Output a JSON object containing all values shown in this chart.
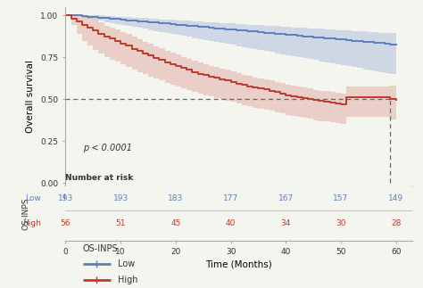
{
  "ylabel": "Overall survival",
  "xlabel": "Time (Months)",
  "xlim": [
    0,
    63
  ],
  "ylim": [
    -0.02,
    1.05
  ],
  "yticks": [
    0.0,
    0.25,
    0.5,
    0.75,
    1.0
  ],
  "xticks": [
    0,
    10,
    20,
    30,
    40,
    50,
    60
  ],
  "pvalue_text": "p < 0.0001",
  "median_line_y": 0.5,
  "median_line_x": 59,
  "low_color": "#5b7fbe",
  "high_color": "#c0392b",
  "low_fill_alpha": 0.25,
  "high_fill_alpha": 0.2,
  "low_time": [
    0,
    1,
    2,
    3,
    4,
    5,
    6,
    7,
    8,
    9,
    10,
    11,
    12,
    13,
    14,
    15,
    16,
    17,
    18,
    19,
    20,
    21,
    22,
    23,
    24,
    25,
    26,
    27,
    28,
    29,
    30,
    31,
    32,
    33,
    34,
    35,
    36,
    37,
    38,
    39,
    40,
    41,
    42,
    43,
    44,
    45,
    46,
    47,
    48,
    49,
    50,
    51,
    52,
    53,
    54,
    55,
    56,
    57,
    58,
    59,
    60
  ],
  "low_surv": [
    1.0,
    1.0,
    1.0,
    0.997,
    0.994,
    0.991,
    0.988,
    0.985,
    0.982,
    0.979,
    0.976,
    0.973,
    0.97,
    0.967,
    0.964,
    0.961,
    0.958,
    0.955,
    0.952,
    0.949,
    0.946,
    0.943,
    0.94,
    0.937,
    0.934,
    0.931,
    0.928,
    0.925,
    0.922,
    0.919,
    0.916,
    0.913,
    0.91,
    0.907,
    0.904,
    0.901,
    0.898,
    0.895,
    0.892,
    0.889,
    0.886,
    0.883,
    0.88,
    0.877,
    0.874,
    0.871,
    0.868,
    0.865,
    0.862,
    0.859,
    0.856,
    0.853,
    0.85,
    0.847,
    0.844,
    0.841,
    0.838,
    0.835,
    0.832,
    0.829,
    0.826
  ],
  "low_upper": [
    1.0,
    1.0,
    1.0,
    1.0,
    1.0,
    1.0,
    1.0,
    0.998,
    0.996,
    0.994,
    0.992,
    0.99,
    0.988,
    0.986,
    0.984,
    0.982,
    0.98,
    0.978,
    0.976,
    0.974,
    0.972,
    0.97,
    0.968,
    0.966,
    0.964,
    0.962,
    0.96,
    0.958,
    0.956,
    0.954,
    0.952,
    0.95,
    0.948,
    0.946,
    0.944,
    0.942,
    0.94,
    0.938,
    0.936,
    0.934,
    0.932,
    0.93,
    0.928,
    0.926,
    0.924,
    0.922,
    0.92,
    0.918,
    0.916,
    0.914,
    0.912,
    0.91,
    0.908,
    0.906,
    0.904,
    0.902,
    0.9,
    0.898,
    0.896,
    0.894,
    0.892
  ],
  "low_lower": [
    1.0,
    1.0,
    1.0,
    0.988,
    0.98,
    0.974,
    0.968,
    0.962,
    0.956,
    0.95,
    0.944,
    0.938,
    0.932,
    0.926,
    0.92,
    0.914,
    0.908,
    0.902,
    0.896,
    0.89,
    0.884,
    0.878,
    0.872,
    0.866,
    0.86,
    0.854,
    0.848,
    0.842,
    0.836,
    0.83,
    0.824,
    0.818,
    0.812,
    0.806,
    0.8,
    0.794,
    0.788,
    0.782,
    0.776,
    0.77,
    0.764,
    0.758,
    0.752,
    0.746,
    0.74,
    0.734,
    0.728,
    0.722,
    0.716,
    0.71,
    0.704,
    0.698,
    0.692,
    0.686,
    0.68,
    0.674,
    0.668,
    0.662,
    0.656,
    0.65,
    0.644
  ],
  "high_time": [
    0,
    1,
    2,
    3,
    4,
    5,
    6,
    7,
    8,
    9,
    10,
    11,
    12,
    13,
    14,
    15,
    16,
    17,
    18,
    19,
    20,
    21,
    22,
    23,
    24,
    25,
    26,
    27,
    28,
    29,
    30,
    31,
    32,
    33,
    34,
    35,
    36,
    37,
    38,
    39,
    40,
    41,
    42,
    43,
    44,
    45,
    46,
    47,
    48,
    49,
    50,
    51,
    52,
    53,
    54,
    55,
    56,
    57,
    58,
    59,
    60
  ],
  "high_surv": [
    1.0,
    0.982,
    0.964,
    0.946,
    0.928,
    0.91,
    0.893,
    0.876,
    0.862,
    0.848,
    0.834,
    0.82,
    0.8,
    0.787,
    0.774,
    0.761,
    0.748,
    0.735,
    0.722,
    0.71,
    0.698,
    0.686,
    0.675,
    0.664,
    0.653,
    0.643,
    0.635,
    0.627,
    0.619,
    0.611,
    0.604,
    0.594,
    0.585,
    0.576,
    0.57,
    0.564,
    0.558,
    0.552,
    0.543,
    0.534,
    0.525,
    0.519,
    0.513,
    0.507,
    0.501,
    0.496,
    0.491,
    0.486,
    0.481,
    0.476,
    0.471,
    0.51,
    0.51,
    0.51,
    0.51,
    0.51,
    0.51,
    0.51,
    0.51,
    0.5,
    0.495
  ],
  "high_upper": [
    1.0,
    1.0,
    1.0,
    1.0,
    0.992,
    0.975,
    0.958,
    0.941,
    0.928,
    0.916,
    0.903,
    0.89,
    0.872,
    0.858,
    0.844,
    0.83,
    0.817,
    0.803,
    0.79,
    0.778,
    0.766,
    0.754,
    0.742,
    0.73,
    0.718,
    0.707,
    0.699,
    0.691,
    0.683,
    0.675,
    0.667,
    0.657,
    0.648,
    0.638,
    0.632,
    0.626,
    0.62,
    0.614,
    0.605,
    0.596,
    0.587,
    0.581,
    0.575,
    0.569,
    0.563,
    0.557,
    0.552,
    0.547,
    0.542,
    0.537,
    0.532,
    0.576,
    0.576,
    0.576,
    0.576,
    0.576,
    0.576,
    0.576,
    0.576,
    0.58,
    0.574
  ],
  "high_lower": [
    1.0,
    0.946,
    0.892,
    0.848,
    0.82,
    0.796,
    0.774,
    0.752,
    0.738,
    0.724,
    0.71,
    0.696,
    0.675,
    0.662,
    0.649,
    0.636,
    0.624,
    0.612,
    0.6,
    0.588,
    0.577,
    0.566,
    0.555,
    0.544,
    0.534,
    0.524,
    0.516,
    0.508,
    0.5,
    0.492,
    0.485,
    0.475,
    0.466,
    0.457,
    0.451,
    0.445,
    0.439,
    0.433,
    0.424,
    0.415,
    0.406,
    0.4,
    0.394,
    0.388,
    0.382,
    0.376,
    0.371,
    0.366,
    0.361,
    0.356,
    0.351,
    0.396,
    0.396,
    0.396,
    0.396,
    0.396,
    0.396,
    0.396,
    0.396,
    0.38,
    0.374
  ],
  "risk_low_labels": [
    "193",
    "193",
    "183",
    "177",
    "167",
    "157",
    "149"
  ],
  "risk_high_labels": [
    "56",
    "51",
    "45",
    "40",
    "34",
    "30",
    "28"
  ],
  "risk_xticks": [
    0,
    10,
    20,
    30,
    40,
    50,
    60
  ],
  "legend_title": "OS-INPS",
  "legend_low": "Low",
  "legend_high": "High",
  "bg_color": "#f5f5f0",
  "spine_color": "#aaaaaa"
}
